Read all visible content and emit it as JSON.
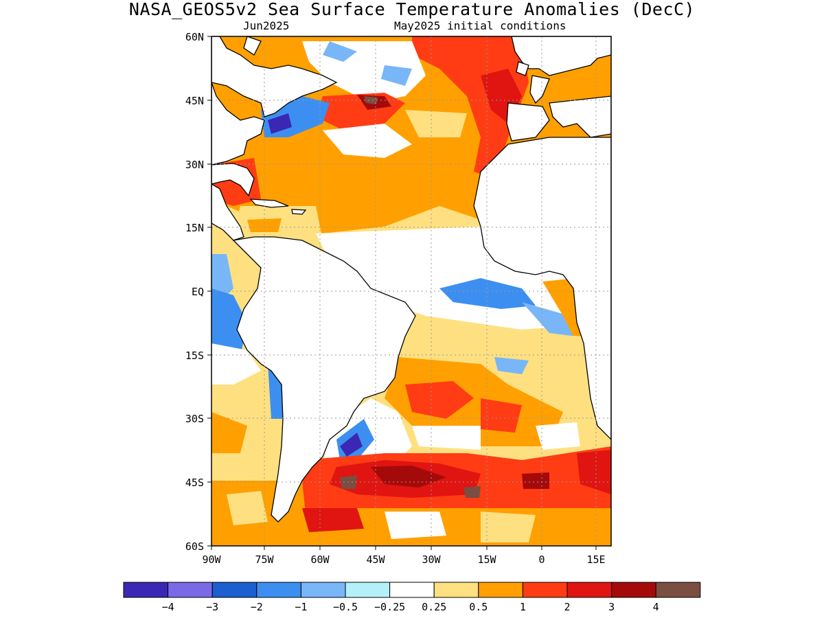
{
  "map": {
    "title": "NASA_GEOS5v2 Sea Surface Temperature Anomalies (DecC)",
    "subtitle_left": "Jun2025",
    "subtitle_right": "May2025 initial conditions",
    "lat_ticks": [
      "60N",
      "45N",
      "30N",
      "15N",
      "EQ",
      "15S",
      "30S",
      "45S",
      "60S"
    ],
    "lon_ticks": [
      "90W",
      "75W",
      "60W",
      "45W",
      "30W",
      "15W",
      "0",
      "15E"
    ],
    "lat_values": [
      60,
      45,
      30,
      15,
      0,
      -15,
      -30,
      -45,
      -60
    ],
    "lon_values": [
      -90,
      -75,
      -60,
      -45,
      -30,
      -15,
      0,
      15
    ]
  },
  "colorbar": {
    "colors": [
      "#3a28b4",
      "#7a6ae6",
      "#1b5fd0",
      "#3c8ff0",
      "#78b6f8",
      "#b4f0fa",
      "#ffffff",
      "#ffe080",
      "#ffa000",
      "#ff3c14",
      "#e01410",
      "#a50a0a",
      "#7a4e41"
    ],
    "labels": [
      "-4",
      "-3",
      "-2",
      "-1",
      "-0.5",
      "-0.25",
      "0.25",
      "0.5",
      "1",
      "2",
      "3",
      "4"
    ]
  },
  "colors": {
    "land": "#ffffff",
    "coast": "#000000",
    "grid": "#999999"
  }
}
